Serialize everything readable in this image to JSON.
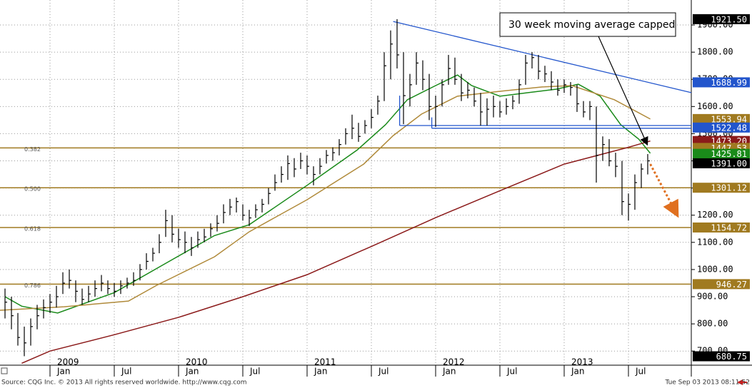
{
  "chart_data": {
    "type": "ohlc",
    "annotation": "30 week moving average capped",
    "source": "Source: CQG Inc. © 2013 All rights reserved worldwide. http://www.cqg.com",
    "timestamp": "Tue Sep 03 2013 08:11:52",
    "xlim": [
      2008.611,
      2013.989
    ],
    "ylim": [
      648,
      1992
    ],
    "grid": true,
    "bar_color": "#000000",
    "xticks": [
      {
        "value": 2009.0,
        "label": "Jan"
      },
      {
        "value": 2009.5,
        "label": "Jul"
      },
      {
        "value": 2010.0,
        "label": "Jan"
      },
      {
        "value": 2010.5,
        "label": "Jul"
      },
      {
        "value": 2011.0,
        "label": "Jan"
      },
      {
        "value": 2011.5,
        "label": "Jul"
      },
      {
        "value": 2012.0,
        "label": "Jan"
      },
      {
        "value": 2012.5,
        "label": "Jul"
      },
      {
        "value": 2013.0,
        "label": "Jan"
      },
      {
        "value": 2013.5,
        "label": "Jul"
      }
    ],
    "year_ticks": [
      {
        "value": 2009.0,
        "label": "2009"
      },
      {
        "value": 2010.0,
        "label": "2010"
      },
      {
        "value": 2011.0,
        "label": "2011"
      },
      {
        "value": 2012.0,
        "label": "2012"
      },
      {
        "value": 2013.0,
        "label": "2013"
      }
    ],
    "yticks": [
      {
        "value": 700,
        "label": "700.00"
      },
      {
        "value": 800,
        "label": "800.00"
      },
      {
        "value": 900,
        "label": "900.00"
      },
      {
        "value": 1000,
        "label": "1000.00"
      },
      {
        "value": 1100,
        "label": "1100.00"
      },
      {
        "value": 1200,
        "label": "1200.00"
      },
      {
        "value": 1300,
        "label": "1300.00"
      },
      {
        "value": 1400,
        "label": "1400.00"
      },
      {
        "value": 1500,
        "label": "1500.00"
      },
      {
        "value": 1600,
        "label": "1600.00"
      },
      {
        "value": 1700,
        "label": "1700.00"
      },
      {
        "value": 1800,
        "label": "1800.00"
      },
      {
        "value": 1900,
        "label": "1900.00"
      }
    ],
    "x": [
      2008.65,
      2008.7,
      2008.75,
      2008.8,
      2008.85,
      2008.9,
      2008.95,
      2009.0,
      2009.05,
      2009.1,
      2009.15,
      2009.2,
      2009.25,
      2009.3,
      2009.35,
      2009.4,
      2009.45,
      2009.5,
      2009.55,
      2009.6,
      2009.65,
      2009.7,
      2009.75,
      2009.8,
      2009.85,
      2009.9,
      2009.95,
      2010.0,
      2010.05,
      2010.1,
      2010.15,
      2010.2,
      2010.25,
      2010.3,
      2010.35,
      2010.4,
      2010.45,
      2010.5,
      2010.55,
      2010.6,
      2010.65,
      2010.7,
      2010.75,
      2010.8,
      2010.85,
      2010.9,
      2010.95,
      2011.0,
      2011.05,
      2011.1,
      2011.15,
      2011.2,
      2011.25,
      2011.3,
      2011.35,
      2011.4,
      2011.45,
      2011.5,
      2011.55,
      2011.6,
      2011.65,
      2011.7,
      2011.75,
      2011.8,
      2011.85,
      2011.9,
      2011.95,
      2012.0,
      2012.05,
      2012.1,
      2012.15,
      2012.2,
      2012.25,
      2012.3,
      2012.35,
      2012.4,
      2012.45,
      2012.5,
      2012.55,
      2012.6,
      2012.65,
      2012.7,
      2012.75,
      2012.8,
      2012.85,
      2012.9,
      2012.95,
      2013.0,
      2013.05,
      2013.1,
      2013.15,
      2013.2,
      2013.25,
      2013.3,
      2013.35,
      2013.4,
      2013.45,
      2013.5,
      2013.55,
      2013.6,
      2013.65
    ],
    "high": [
      930,
      900,
      840,
      790,
      820,
      870,
      890,
      910,
      940,
      990,
      1000,
      960,
      930,
      940,
      960,
      980,
      960,
      950,
      960,
      970,
      990,
      1020,
      1060,
      1080,
      1130,
      1220,
      1200,
      1150,
      1140,
      1120,
      1140,
      1150,
      1170,
      1200,
      1240,
      1260,
      1265,
      1240,
      1220,
      1240,
      1260,
      1300,
      1350,
      1380,
      1420,
      1410,
      1430,
      1420,
      1380,
      1410,
      1440,
      1450,
      1480,
      1520,
      1570,
      1540,
      1550,
      1590,
      1640,
      1800,
      1880,
      1921.5,
      1800,
      1720,
      1800,
      1770,
      1720,
      1640,
      1700,
      1790,
      1780,
      1720,
      1690,
      1670,
      1650,
      1630,
      1640,
      1620,
      1630,
      1640,
      1700,
      1790,
      1800,
      1790,
      1750,
      1730,
      1700,
      1700,
      1690,
      1680,
      1620,
      1620,
      1600,
      1490,
      1480,
      1430,
      1400,
      1280,
      1350,
      1390,
      1425
    ],
    "low": [
      820,
      780,
      720,
      681,
      720,
      780,
      820,
      840,
      860,
      910,
      930,
      880,
      870,
      880,
      900,
      920,
      910,
      900,
      910,
      930,
      940,
      960,
      1000,
      1030,
      1060,
      1120,
      1100,
      1080,
      1060,
      1050,
      1080,
      1100,
      1120,
      1140,
      1170,
      1200,
      1210,
      1180,
      1160,
      1190,
      1210,
      1240,
      1290,
      1320,
      1330,
      1340,
      1370,
      1350,
      1310,
      1350,
      1390,
      1400,
      1420,
      1460,
      1480,
      1470,
      1500,
      1520,
      1570,
      1620,
      1700,
      1740,
      1535,
      1600,
      1680,
      1660,
      1550,
      1525,
      1600,
      1680,
      1680,
      1620,
      1630,
      1600,
      1530,
      1530,
      1560,
      1560,
      1570,
      1590,
      1610,
      1680,
      1740,
      1700,
      1690,
      1660,
      1640,
      1650,
      1640,
      1580,
      1560,
      1550,
      1320,
      1400,
      1380,
      1340,
      1200,
      1180,
      1220,
      1300,
      1350
    ],
    "close": [
      880,
      830,
      750,
      730,
      790,
      830,
      860,
      880,
      900,
      950,
      960,
      920,
      890,
      910,
      930,
      950,
      930,
      920,
      940,
      950,
      960,
      1000,
      1030,
      1060,
      1100,
      1180,
      1130,
      1110,
      1100,
      1080,
      1110,
      1120,
      1150,
      1170,
      1210,
      1230,
      1250,
      1200,
      1190,
      1220,
      1240,
      1280,
      1320,
      1350,
      1390,
      1370,
      1400,
      1380,
      1350,
      1380,
      1420,
      1430,
      1460,
      1500,
      1520,
      1490,
      1530,
      1560,
      1620,
      1750,
      1830,
      1790,
      1640,
      1680,
      1760,
      1700,
      1600,
      1600,
      1680,
      1740,
      1700,
      1650,
      1660,
      1620,
      1580,
      1590,
      1600,
      1580,
      1600,
      1620,
      1680,
      1760,
      1780,
      1730,
      1720,
      1690,
      1660,
      1680,
      1670,
      1610,
      1580,
      1600,
      1420,
      1460,
      1400,
      1380,
      1250,
      1240,
      1320,
      1370,
      1400
    ],
    "ma": [
      {
        "color": "#1a8a1a",
        "x": [
          2008.65,
          2008.78,
          2009.06,
          2009.5,
          2009.89,
          2010.28,
          2010.55,
          2011.0,
          2011.39,
          2011.61,
          2011.78,
          2012.0,
          2012.17,
          2012.28,
          2012.5,
          2012.72,
          2012.94,
          2013.11,
          2013.28,
          2013.44,
          2013.58,
          2013.67
        ],
        "values": [
          900,
          865,
          840,
          915,
          1020,
          1125,
          1165,
          1310,
          1440,
          1533,
          1625,
          1677,
          1716,
          1677,
          1638,
          1651,
          1664,
          1682,
          1638,
          1533,
          1480,
          1428
        ]
      },
      {
        "color": "#b08a3a",
        "x": [
          2008.61,
          2009.11,
          2009.61,
          2009.83,
          2010.28,
          2010.55,
          2011.0,
          2011.44,
          2011.67,
          2011.89,
          2012.17,
          2012.5,
          2012.83,
          2013.06,
          2013.39,
          2013.67
        ],
        "values": [
          850,
          863,
          884,
          942,
          1047,
          1139,
          1257,
          1388,
          1493,
          1572,
          1638,
          1656,
          1672,
          1677,
          1625,
          1554
        ]
      },
      {
        "color": "#8b1a1a",
        "x": [
          2008.78,
          2009.0,
          2009.5,
          2010.0,
          2010.5,
          2011.0,
          2011.5,
          2012.0,
          2012.5,
          2013.0,
          2013.5,
          2013.67
        ],
        "values": [
          655,
          700,
          760,
          824,
          900,
          981,
          1085,
          1191,
          1290,
          1388,
          1450,
          1473
        ]
      }
    ],
    "fib_lines": [
      {
        "label": "0.382",
        "value": 1447.53
      },
      {
        "label": "0.500",
        "value": 1301.12
      },
      {
        "label": "0.618",
        "value": 1154.72
      },
      {
        "label": "0.786",
        "value": 946.27
      }
    ],
    "fib_color": "#a07a20",
    "trend_lines": [
      {
        "color": "#2255cc",
        "x": [
          2011.67,
          2013.989
        ],
        "y": [
          1913,
          1651
        ]
      },
      {
        "color": "#2255cc",
        "x": [
          2011.72,
          2013.989
        ],
        "y": [
          1530,
          1530
        ]
      },
      {
        "color": "#2255cc",
        "x": [
          2011.97,
          2013.989
        ],
        "y": [
          1520,
          1520
        ]
      },
      {
        "color": "#2255cc",
        "x": [
          2011.72,
          2011.72
        ],
        "y": [
          1530,
          1640
        ]
      },
      {
        "color": "#2255cc",
        "x": [
          2011.97,
          2011.97
        ],
        "y": [
          1520,
          1560
        ]
      }
    ],
    "forecast": {
      "color": "#e07020",
      "x": [
        2013.67,
        2013.86
      ],
      "y": [
        1388,
        1218
      ]
    },
    "price_tags": [
      {
        "value": 1921.5,
        "label": "1921.50",
        "color": "#000000"
      },
      {
        "value": 1688.99,
        "label": "1688.99",
        "color": "#2255cc"
      },
      {
        "value": 1553.94,
        "label": "1553.94",
        "color": "#a07a20"
      },
      {
        "value": 1522.48,
        "label": "1522.48",
        "color": "#2255cc"
      },
      {
        "value": 1473.2,
        "label": "1473.20",
        "color": "#8b1a1a"
      },
      {
        "value": 1447.53,
        "label": "1447.53",
        "color": "#a07a20"
      },
      {
        "value": 1425.81,
        "label": "1425.81",
        "color": "#1a8a1a"
      },
      {
        "value": 1391,
        "label": "1391.00",
        "color": "#000000"
      },
      {
        "value": 1301.12,
        "label": "1301.12",
        "color": "#a07a20"
      },
      {
        "value": 1154.72,
        "label": "1154.72",
        "color": "#a07a20"
      },
      {
        "value": 946.27,
        "label": "946.27",
        "color": "#a07a20"
      },
      {
        "value": 680.75,
        "label": "680.75",
        "color": "#000000"
      }
    ]
  }
}
